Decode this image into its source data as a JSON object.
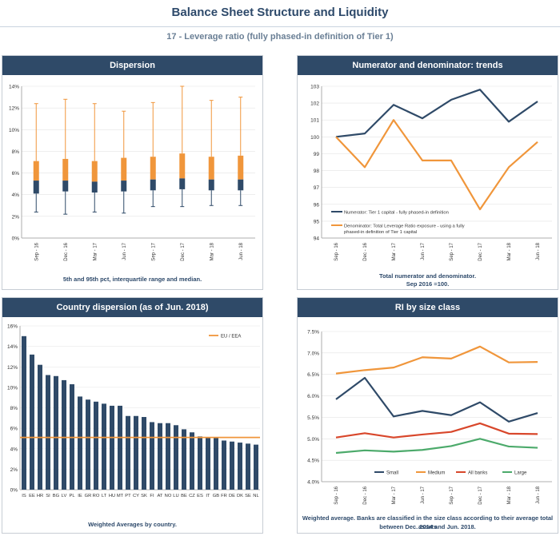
{
  "header": {
    "title": "Balance Sheet Structure and Liquidity",
    "subtitle": "17 - Leverage ratio (fully phased-in definition of Tier 1)"
  },
  "panels": {
    "dispersion": {
      "title": "Dispersion",
      "note": "5th and 95th pct, interquartile range and median."
    },
    "trends": {
      "title": "Numerator and denominator: trends",
      "note_line1": "Total numerator and denominator.",
      "note_line2": "Sep 2016 =100."
    },
    "country": {
      "title": "Country dispersion (as of Jun. 2018)",
      "note": "Weighted Averages by country."
    },
    "size": {
      "title": "RI by size class",
      "note_line1": "Weighted average. Banks are classified in the size class according to their average total assets",
      "note_line2": "between Dec. 2014 and Jun. 2018."
    }
  },
  "colors": {
    "navy": "#2f4a68",
    "orange": "#f0963b",
    "red": "#d8472b",
    "green": "#4caa6b"
  },
  "chart_data": [
    {
      "id": "dispersion",
      "type": "boxplot",
      "categories": [
        "Sep - 16",
        "Dec - 16",
        "Mar - 17",
        "Jun - 17",
        "Sep - 17",
        "Dec - 17",
        "Mar - 18",
        "Jun - 18"
      ],
      "yticks": [
        "0%",
        "2%",
        "4%",
        "6%",
        "8%",
        "10%",
        "12%",
        "14%"
      ],
      "ylim": [
        0,
        14
      ],
      "p5": [
        2.4,
        2.2,
        2.4,
        2.3,
        2.9,
        2.9,
        3.0,
        3.0
      ],
      "q1": [
        4.1,
        4.3,
        4.2,
        4.3,
        4.4,
        4.5,
        4.4,
        4.4
      ],
      "median": [
        5.3,
        5.3,
        5.2,
        5.3,
        5.4,
        5.5,
        5.4,
        5.4
      ],
      "q3": [
        7.1,
        7.3,
        7.1,
        7.4,
        7.5,
        7.8,
        7.5,
        7.6
      ],
      "p95": [
        12.4,
        12.8,
        12.4,
        11.7,
        12.5,
        14.0,
        12.7,
        13.0
      ]
    },
    {
      "id": "trends",
      "type": "line",
      "x": [
        "Sep - 16",
        "Dec - 16",
        "Mar - 17",
        "Jun - 17",
        "Sep - 17",
        "Dec - 17",
        "Mar - 18",
        "Jun - 18"
      ],
      "yticks": [
        "94",
        "95",
        "96",
        "97",
        "98",
        "99",
        "100",
        "101",
        "102",
        "103"
      ],
      "ylim": [
        94,
        103
      ],
      "series": [
        {
          "name": "Numerator: Tier 1 capital - fully phased-in definition",
          "color": "#2f4a68",
          "values": [
            100.0,
            100.2,
            101.9,
            101.1,
            102.2,
            102.8,
            100.9,
            102.1
          ]
        },
        {
          "name_line1": "Denominator: Total Leverage Ratio exposure - using a fully",
          "name_line2": "phased-in definition of Tier 1 capital",
          "color": "#f0963b",
          "values": [
            100.0,
            98.2,
            101.0,
            98.6,
            98.6,
            95.7,
            98.2,
            99.7
          ]
        }
      ]
    },
    {
      "id": "country",
      "type": "bar",
      "categories": [
        "IS",
        "EE",
        "HR",
        "SI",
        "BG",
        "LV",
        "PL",
        "IE",
        "GR",
        "RO",
        "LT",
        "HU",
        "MT",
        "PT",
        "CY",
        "SK",
        "FI",
        "AT",
        "NO",
        "LU",
        "BE",
        "CZ",
        "ES",
        "IT",
        "GB",
        "FR",
        "DE",
        "DK",
        "SE",
        "NL"
      ],
      "values": [
        15.0,
        13.2,
        12.2,
        11.2,
        11.1,
        10.7,
        10.3,
        9.1,
        8.8,
        8.6,
        8.4,
        8.2,
        8.2,
        7.2,
        7.2,
        7.1,
        6.6,
        6.5,
        6.5,
        6.3,
        5.9,
        5.6,
        5.2,
        5.1,
        5.1,
        4.8,
        4.7,
        4.6,
        4.5,
        4.4
      ],
      "yticks": [
        "0%",
        "2%",
        "4%",
        "6%",
        "8%",
        "10%",
        "12%",
        "14%",
        "16%"
      ],
      "ylim": [
        0,
        16
      ],
      "reference": {
        "name": "EU / EEA",
        "value": 5.1,
        "color": "#f0963b"
      }
    },
    {
      "id": "size",
      "type": "line",
      "x": [
        "Sep - 16",
        "Dec - 16",
        "Mar - 17",
        "Jun - 17",
        "Sep - 17",
        "Dec - 17",
        "Mar - 18",
        "Jun - 18"
      ],
      "yticks": [
        "4.0%",
        "4.5%",
        "5.0%",
        "5.5%",
        "6.0%",
        "6.5%",
        "7.0%",
        "7.5%"
      ],
      "ylim": [
        4.0,
        7.5
      ],
      "series": [
        {
          "name": "Small",
          "color": "#2f4a68",
          "values": [
            5.92,
            6.42,
            5.52,
            5.65,
            5.55,
            5.85,
            5.4,
            5.6
          ]
        },
        {
          "name": "Medium",
          "color": "#f0963b",
          "values": [
            6.52,
            6.6,
            6.66,
            6.9,
            6.87,
            7.15,
            6.78,
            6.79
          ]
        },
        {
          "name": "All banks",
          "color": "#d8472b",
          "values": [
            5.03,
            5.13,
            5.03,
            5.1,
            5.16,
            5.36,
            5.12,
            5.11
          ]
        },
        {
          "name": "Large",
          "color": "#4caa6b",
          "values": [
            4.67,
            4.73,
            4.7,
            4.74,
            4.83,
            5.0,
            4.82,
            4.79
          ]
        }
      ]
    }
  ]
}
